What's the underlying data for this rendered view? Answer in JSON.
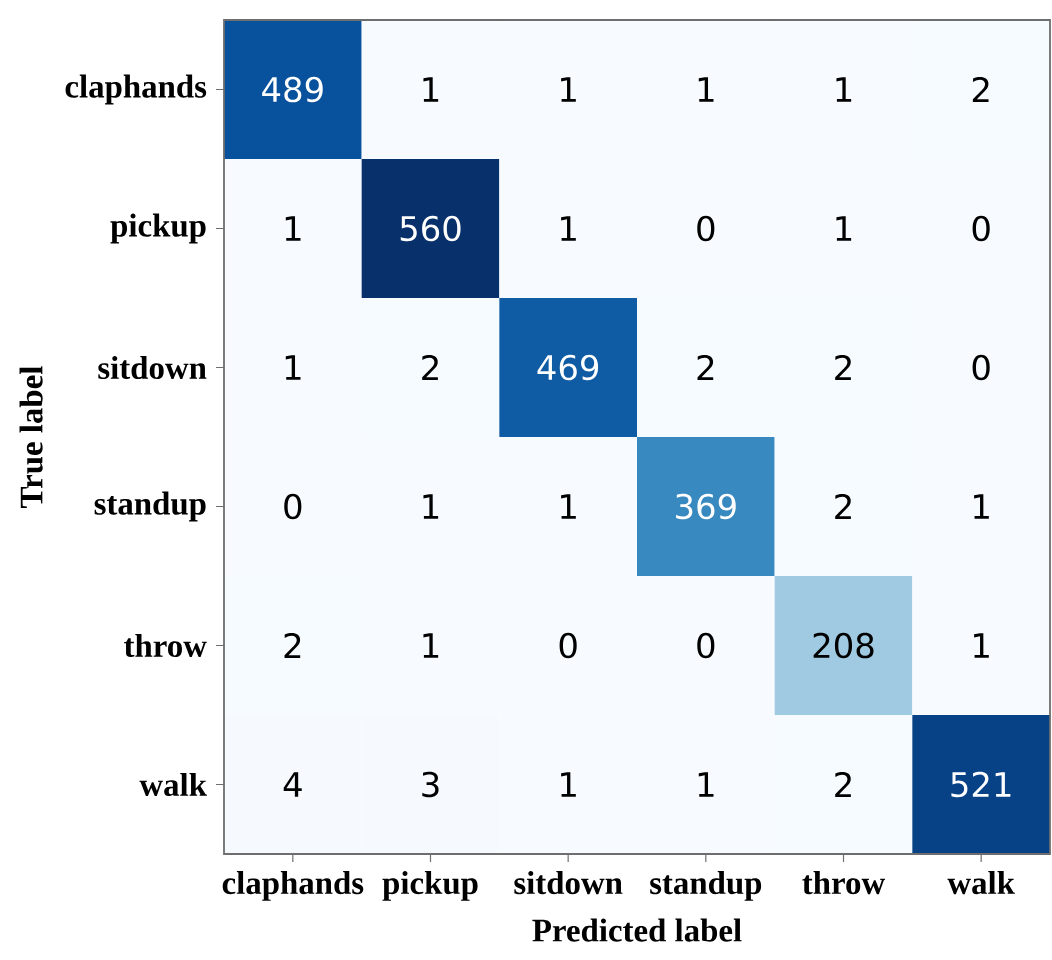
{
  "chart_data": {
    "type": "heatmap",
    "xlabel": "Predicted label",
    "ylabel": "True label",
    "categories": [
      "claphands",
      "pickup",
      "sitdown",
      "standup",
      "throw",
      "walk"
    ],
    "y_categories": [
      "claphands",
      "pickup",
      "sitdown",
      "standup",
      "throw",
      "walk"
    ],
    "cells": [
      [
        489,
        1,
        1,
        1,
        1,
        2
      ],
      [
        1,
        560,
        1,
        0,
        1,
        0
      ],
      [
        1,
        2,
        469,
        2,
        2,
        0
      ],
      [
        0,
        1,
        1,
        369,
        2,
        1
      ],
      [
        2,
        1,
        0,
        0,
        208,
        1
      ],
      [
        4,
        3,
        1,
        1,
        2,
        521
      ]
    ],
    "data_labels": true
  }
}
